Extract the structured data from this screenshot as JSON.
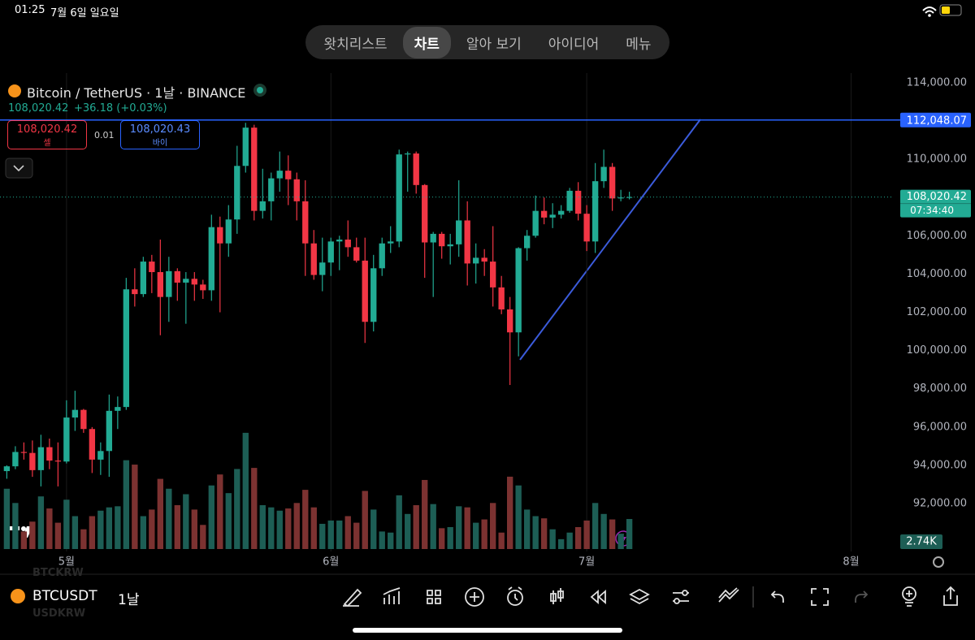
{
  "status_bar": {
    "time": "01:25",
    "date": "7월 6일 일요일"
  },
  "tabs": [
    "왓치리스트",
    "차트",
    "알아 보기",
    "아이디어",
    "메뉴"
  ],
  "active_tab_index": 1,
  "symbol_header": {
    "title": "Bitcoin / TetherUS · 1날 · BINANCE",
    "price": "108,020.42",
    "change": "+36.18 (+0.03%)"
  },
  "trade": {
    "sell_price": "108,020.42",
    "sell_label": "셀",
    "spread": "0.01",
    "buy_price": "108,020.43",
    "buy_label": "바이"
  },
  "chart_data": {
    "type": "candlestick",
    "open": [
      93700,
      93950,
      94700,
      94650,
      93750,
      94950,
      94250,
      94200,
      96500,
      96900,
      95900,
      94300,
      94750,
      96850,
      97050,
      103200,
      102950,
      104650,
      104100,
      102800,
      104150,
      103550,
      103750,
      103450,
      103150,
      106450,
      105600,
      106850,
      109650,
      111650,
      107300,
      107800,
      109000,
      109400,
      108950,
      107800,
      105600,
      103950,
      104600,
      105700,
      105800,
      105400,
      104700,
      101500,
      104300,
      105600,
      105700,
      110250,
      110300,
      108650,
      105650,
      106100,
      105450,
      105550,
      106800,
      104550,
      104850,
      104650,
      103300,
      102150,
      100950,
      105350,
      106000,
      107300,
      106950,
      107100,
      107300,
      108350,
      107150,
      105700,
      108850,
      109600,
      107950,
      108000
    ],
    "high": [
      94000,
      95000,
      95200,
      95300,
      95600,
      95400,
      95200,
      97400,
      97900,
      96950,
      96000,
      95200,
      97700,
      97600,
      103800,
      104300,
      104900,
      105000,
      105800,
      104900,
      104300,
      104100,
      104100,
      103700,
      107100,
      107000,
      107600,
      110700,
      111900,
      111800,
      109500,
      109300,
      110400,
      110200,
      109300,
      108900,
      106300,
      105900,
      105900,
      106000,
      106800,
      105900,
      105900,
      105000,
      105900,
      106500,
      110500,
      110400,
      110400,
      108700,
      106200,
      106200,
      106100,
      108900,
      107800,
      105600,
      105300,
      106500,
      103900,
      102800,
      105400,
      106300,
      108100,
      108000,
      107700,
      107600,
      108500,
      108800,
      107600,
      109800,
      110500,
      109800,
      108400,
      108300
    ],
    "low": [
      93300,
      93800,
      94300,
      93400,
      92900,
      93800,
      92900,
      94100,
      95800,
      95700,
      93600,
      93500,
      93400,
      95900,
      96900,
      102300,
      102800,
      103000,
      100800,
      101500,
      102600,
      101400,
      102600,
      102700,
      102600,
      102000,
      104900,
      106100,
      109300,
      106800,
      106900,
      106800,
      108300,
      107600,
      106800,
      103900,
      103700,
      103100,
      103900,
      104200,
      104900,
      104600,
      100400,
      101000,
      103900,
      105100,
      105400,
      108300,
      108200,
      103800,
      102800,
      104800,
      104500,
      104900,
      103400,
      103500,
      103900,
      102300,
      101900,
      98200,
      99700,
      104700,
      105900,
      106600,
      106400,
      106900,
      107200,
      106800,
      105200,
      105100,
      108500,
      107300,
      107800,
      107900
    ],
    "close": [
      93950,
      94700,
      94650,
      93750,
      94950,
      94250,
      94200,
      96500,
      96900,
      95900,
      94300,
      94750,
      96850,
      97050,
      103200,
      102950,
      104650,
      104100,
      102800,
      104150,
      103550,
      103750,
      103450,
      103150,
      106450,
      105600,
      106850,
      109650,
      111650,
      107300,
      107800,
      109000,
      109400,
      108950,
      107800,
      105600,
      103950,
      104600,
      105700,
      105800,
      105400,
      104700,
      101500,
      104300,
      105600,
      105700,
      110250,
      110300,
      108650,
      105650,
      106100,
      105450,
      105550,
      106800,
      104550,
      104850,
      104650,
      103300,
      102150,
      100950,
      105350,
      106000,
      107300,
      106950,
      107100,
      107300,
      108350,
      107150,
      105700,
      108850,
      109600,
      107950,
      108000,
      108020.42
    ],
    "volume": [
      5.5,
      4.2,
      1.6,
      2.5,
      4.8,
      3.7,
      2.4,
      4.5,
      3.0,
      1.8,
      3.0,
      3.5,
      3.8,
      3.9,
      8.1,
      7.7,
      3.0,
      3.6,
      6.4,
      5.5,
      4.0,
      5.0,
      3.6,
      2.2,
      5.8,
      6.8,
      5.1,
      7.3,
      10.6,
      7.4,
      4.0,
      3.8,
      3.5,
      3.7,
      4.2,
      5.4,
      3.8,
      2.3,
      2.6,
      2.6,
      3.0,
      2.4,
      5.3,
      3.6,
      1.6,
      1.5,
      4.9,
      3.2,
      4.0,
      6.3,
      4.1,
      1.9,
      2.0,
      3.9,
      3.8,
      2.4,
      2.7,
      4.2,
      1.5,
      6.6,
      5.8,
      3.6,
      3.0,
      2.8,
      1.8,
      0.9,
      1.5,
      2.0,
      2.6,
      4.2,
      3.2,
      2.7,
      1.4,
      2.74
    ],
    "volume_lim": [
      0,
      14
    ],
    "volume_label": "2.74K",
    "up_color": "#22ab94",
    "down_color": "#f23645",
    "up_volume_color": "#1d5e55",
    "down_volume_color": "#7c3231",
    "xlim": [
      -0.8,
      104
    ],
    "xticks": [
      {
        "value": 7,
        "label": "5월"
      },
      {
        "value": 38,
        "label": "6월"
      },
      {
        "value": 68,
        "label": "7월"
      },
      {
        "value": 99,
        "label": "8월"
      }
    ],
    "ylim": [
      89500,
      114500
    ],
    "yticks": [
      {
        "value": 92000,
        "label": "92,000.00"
      },
      {
        "value": 94000,
        "label": "94,000.00"
      },
      {
        "value": 96000,
        "label": "96,000.00"
      },
      {
        "value": 98000,
        "label": "98,000.00"
      },
      {
        "value": 100000,
        "label": "100,000.00"
      },
      {
        "value": 102000,
        "label": "102,000.00"
      },
      {
        "value": 104000,
        "label": "104,000.00"
      },
      {
        "value": 106000,
        "label": "106,000.00"
      },
      {
        "value": 110000,
        "label": "110,000.00"
      },
      {
        "value": 114000,
        "label": "114,000.00"
      }
    ],
    "price_lines": [
      {
        "value": 112048.07,
        "label": "112,048.07",
        "color": "#2962ff"
      }
    ],
    "last_price": {
      "value": 108020.42,
      "label": "108,020.42",
      "countdown": "07:34:40"
    }
  },
  "bottom_bar": {
    "symbol": "BTCUSDT",
    "interval": "1날",
    "ghost": [
      "BTCKRW",
      "USDKRW"
    ]
  }
}
